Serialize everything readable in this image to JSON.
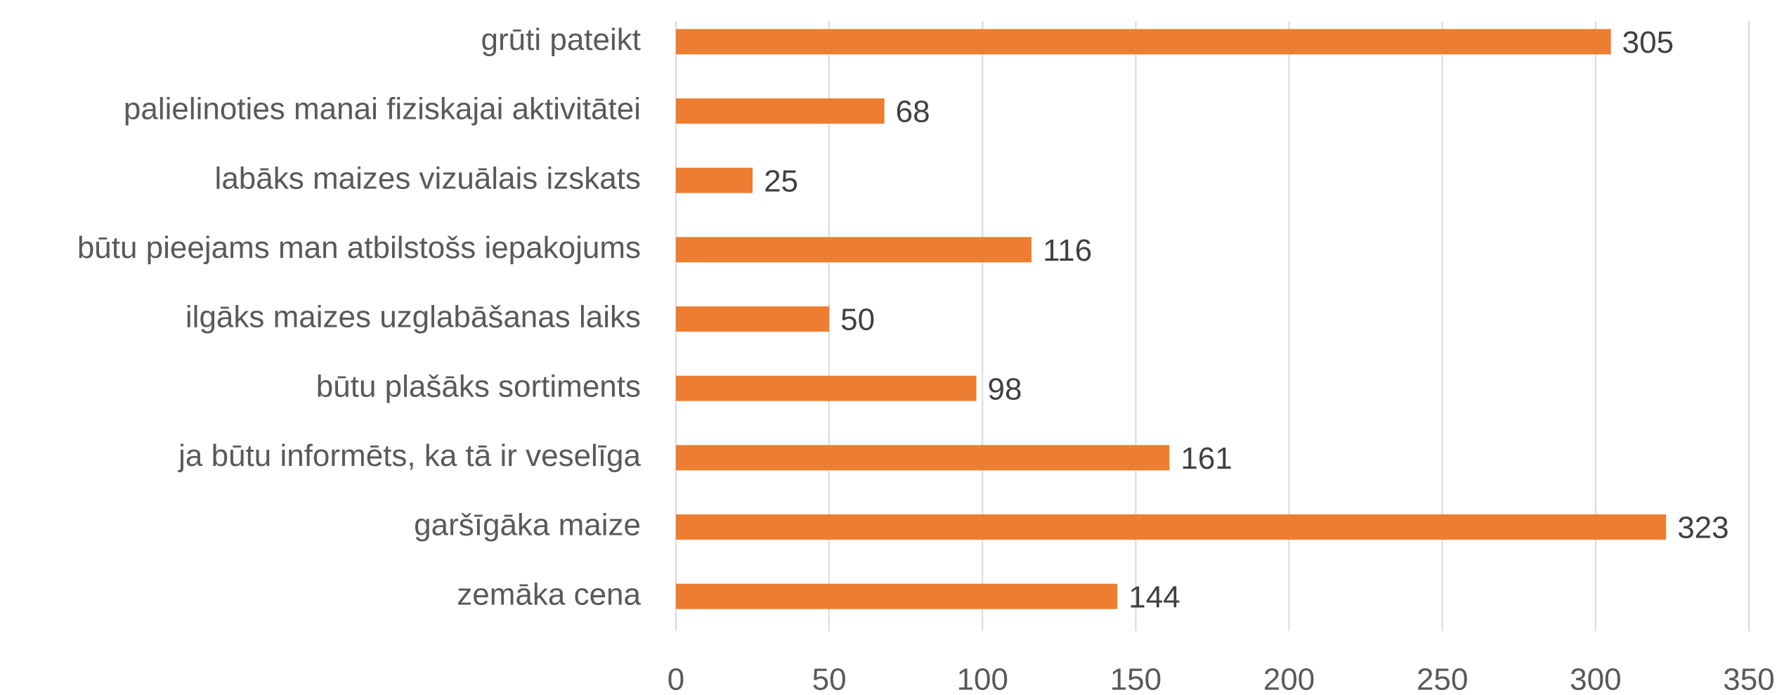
{
  "chart_data": {
    "type": "barh",
    "categories": [
      "grūti pateikt",
      "palielinoties manai fiziskajai aktivitātei",
      "labāks maizes vizuālais izskats",
      "būtu pieejams man atbilstošs iepakojums",
      "ilgāks maizes uzglabāšanas laiks",
      "būtu plašāks sortiments",
      "ja būtu informēts, ka tā ir veselīga",
      "garšīgāka maize",
      "zemāka cena"
    ],
    "values": [
      305,
      68,
      25,
      116,
      50,
      98,
      161,
      323,
      144
    ],
    "color": "#ed7d31",
    "xlim": [
      0,
      350
    ],
    "xticks": [
      0,
      50,
      100,
      150,
      200,
      250,
      300,
      350
    ],
    "grid": true
  }
}
